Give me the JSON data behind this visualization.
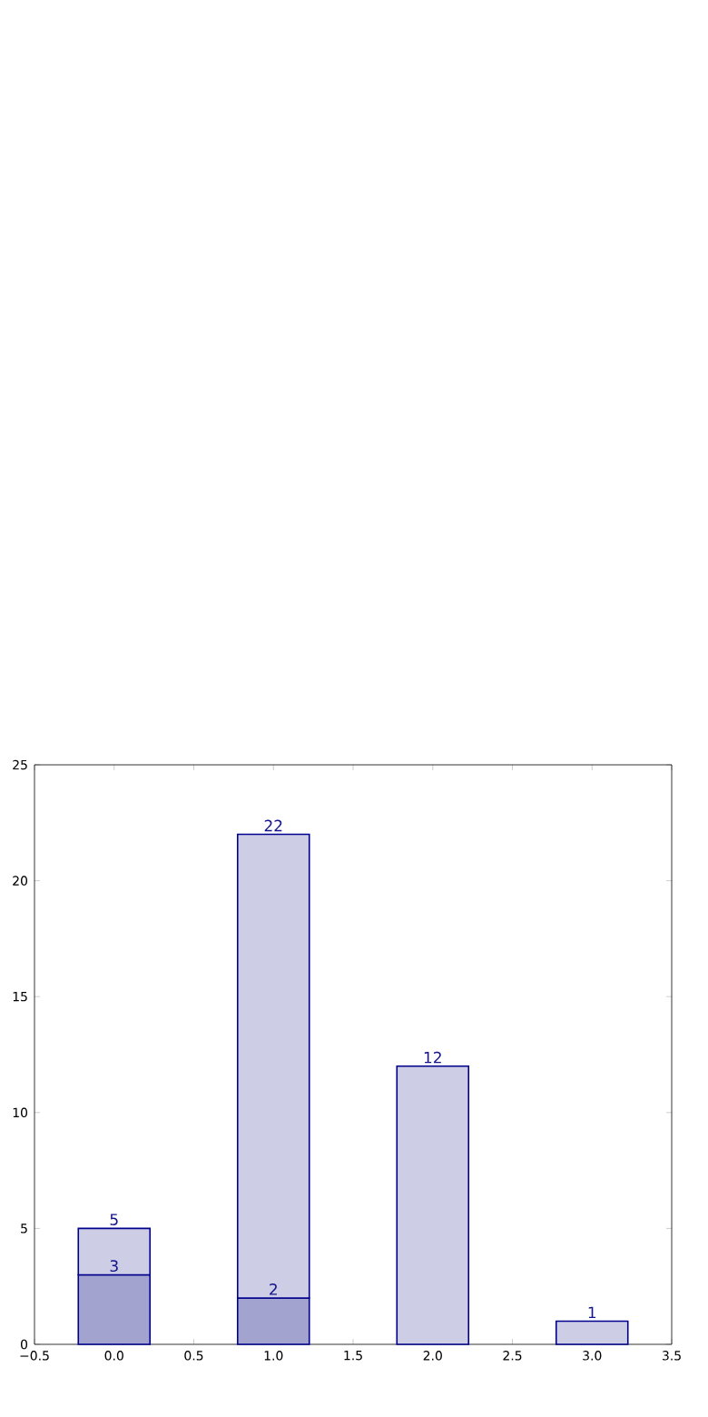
{
  "chart_data": {
    "type": "bar",
    "stacked": true,
    "series": [
      {
        "color": "#a3a3d0",
        "x": [
          0,
          1
        ],
        "values": [
          3,
          2
        ],
        "value_labels": [
          "3",
          "2"
        ]
      },
      {
        "color": "#cdcde6",
        "x": [
          0,
          1,
          2,
          3
        ],
        "values": [
          2,
          20,
          12,
          1
        ]
      }
    ],
    "totals": [
      "5",
      "22",
      "12",
      "1"
    ],
    "xlim": [
      -0.5,
      3.5
    ],
    "xticks": [
      {
        "value": -0.5,
        "label": "−0.5"
      },
      {
        "value": 0,
        "label": "0.0"
      },
      {
        "value": 0.5,
        "label": "0.5"
      },
      {
        "value": 1,
        "label": "1.0"
      },
      {
        "value": 1.5,
        "label": "1.5"
      },
      {
        "value": 2,
        "label": "2.0"
      },
      {
        "value": 2.5,
        "label": "2.5"
      },
      {
        "value": 3,
        "label": "3.0"
      },
      {
        "value": 3.5,
        "label": "3.5"
      }
    ],
    "ylim": [
      0,
      25
    ],
    "yticks": [
      0,
      5,
      10,
      15,
      20,
      25
    ]
  }
}
